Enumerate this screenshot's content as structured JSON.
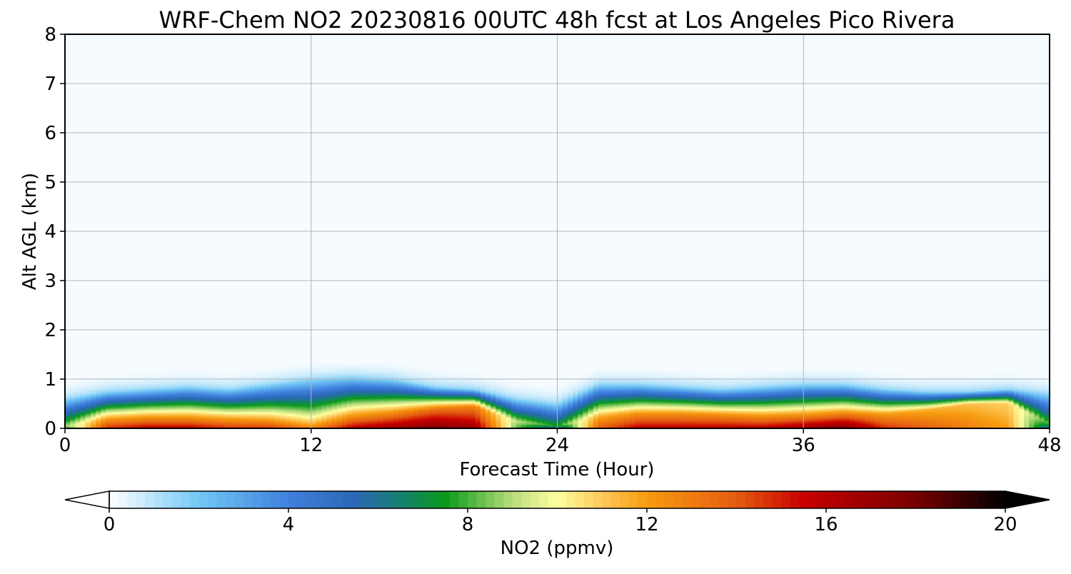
{
  "chart_data": {
    "type": "heatmap",
    "title": "WRF-Chem NO2  20230816 00UTC 48h fcst at Los Angeles Pico Rivera",
    "xlabel": "Forecast Time (Hour)",
    "ylabel": "Alt AGL (km)",
    "xlim": [
      0,
      48
    ],
    "ylim": [
      0,
      8
    ],
    "x_ticks": [
      "0",
      "12",
      "24",
      "36",
      "48"
    ],
    "y_ticks": [
      "0",
      "1",
      "2",
      "3",
      "4",
      "5",
      "6",
      "7",
      "8"
    ],
    "grid": true,
    "profile": {
      "hours": [
        0,
        2,
        4,
        6,
        8,
        10,
        12,
        14,
        16,
        18,
        20,
        22,
        24,
        26,
        28,
        30,
        32,
        34,
        36,
        38,
        40,
        42,
        44,
        46,
        48
      ],
      "surface_no2_ppmv": [
        7,
        15,
        16,
        16,
        15,
        15,
        13,
        16,
        17,
        18,
        17,
        8,
        4,
        14,
        16,
        16,
        16,
        16,
        17,
        18,
        15,
        14,
        13,
        12,
        5
      ],
      "red_layer_top_km": [
        0.05,
        0.2,
        0.22,
        0.22,
        0.2,
        0.18,
        0.12,
        0.25,
        0.3,
        0.4,
        0.45,
        0.15,
        0.05,
        0.25,
        0.3,
        0.3,
        0.28,
        0.25,
        0.25,
        0.28,
        0.3,
        0.38,
        0.5,
        0.52,
        0.1
      ],
      "mixing_top_km": [
        0.6,
        0.75,
        0.8,
        0.85,
        0.8,
        0.9,
        1.0,
        1.05,
        1.0,
        0.85,
        0.8,
        0.6,
        0.5,
        0.9,
        0.9,
        0.85,
        0.8,
        0.85,
        0.9,
        0.9,
        0.8,
        0.75,
        0.75,
        0.8,
        0.7
      ]
    },
    "colorbar": {
      "label": "NO2  (ppmv)",
      "min": 0,
      "max": 20,
      "extend": "both",
      "ticks": [
        "0",
        "4",
        "8",
        "12",
        "16",
        "20"
      ],
      "stops": [
        {
          "v": 0,
          "c": "#ffffff"
        },
        {
          "v": 2,
          "c": "#72c8f5"
        },
        {
          "v": 4,
          "c": "#3f80de"
        },
        {
          "v": 5.5,
          "c": "#2a68b4"
        },
        {
          "v": 6.5,
          "c": "#168070"
        },
        {
          "v": 7.5,
          "c": "#0a9a1a"
        },
        {
          "v": 9,
          "c": "#b8dd7c"
        },
        {
          "v": 10,
          "c": "#ffffa0"
        },
        {
          "v": 11,
          "c": "#fcc85a"
        },
        {
          "v": 12,
          "c": "#f79c10"
        },
        {
          "v": 14,
          "c": "#e45c10"
        },
        {
          "v": 15.5,
          "c": "#c80000"
        },
        {
          "v": 18,
          "c": "#780000"
        },
        {
          "v": 20,
          "c": "#000000"
        }
      ]
    }
  }
}
